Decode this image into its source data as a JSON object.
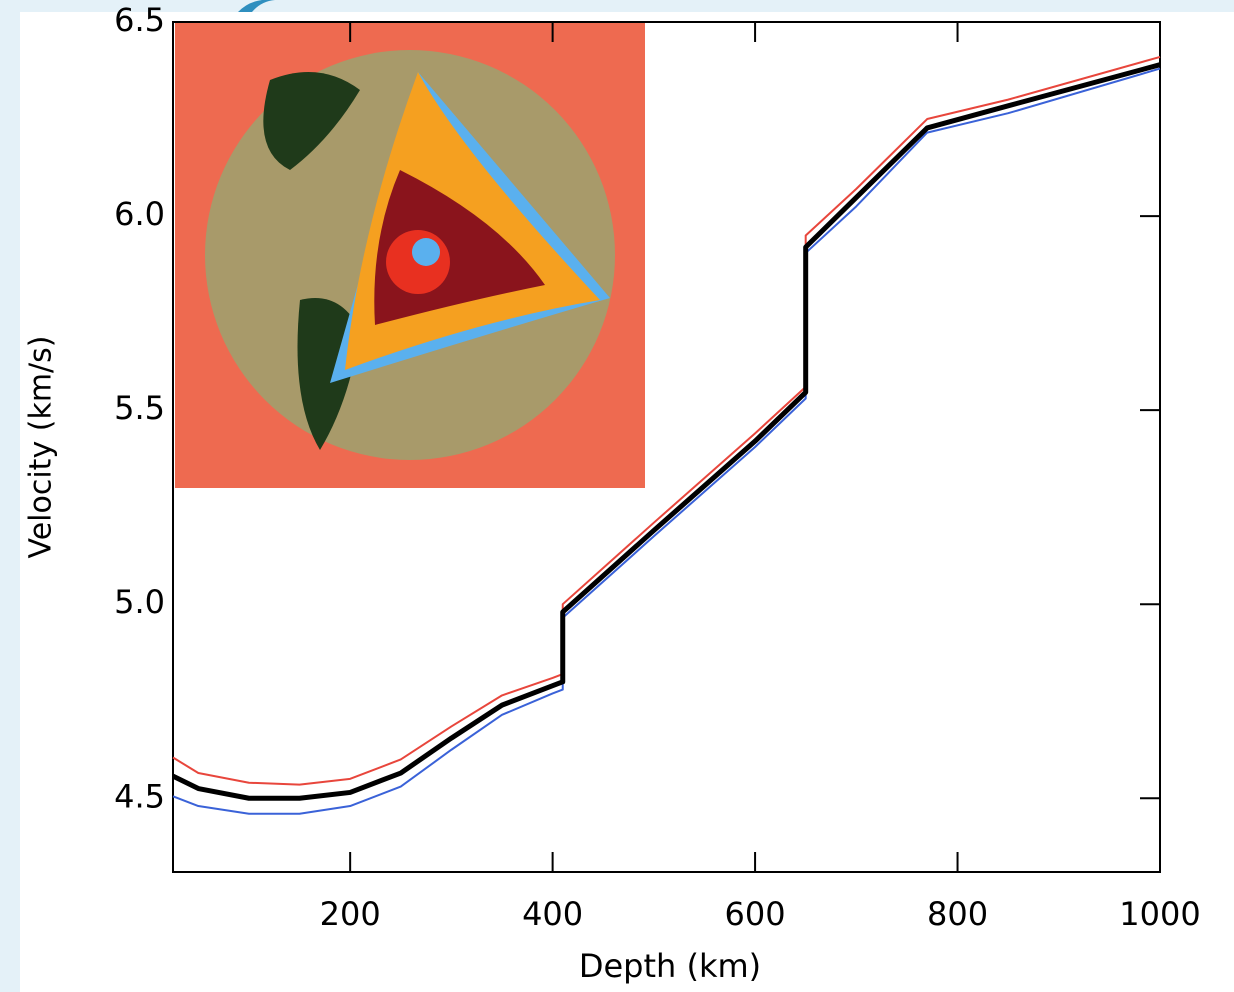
{
  "chart_data": {
    "type": "line",
    "xlabel": "Depth (km)",
    "ylabel": "Velocity (km/s)",
    "x": [
      25,
      50,
      100,
      150,
      200,
      250,
      300,
      350,
      400,
      410,
      410,
      500,
      600,
      650,
      650,
      700,
      770,
      850,
      1000
    ],
    "series": [
      {
        "color": "#e8463c",
        "values": [
          4.605,
          4.565,
          4.54,
          4.535,
          4.55,
          4.6,
          4.685,
          4.765,
          4.81,
          4.82,
          5.0,
          5.21,
          5.44,
          5.56,
          5.95,
          6.07,
          6.25,
          6.3,
          6.41
        ]
      },
      {
        "color": "#3a62d8",
        "values": [
          4.505,
          4.48,
          4.46,
          4.46,
          4.48,
          4.53,
          4.625,
          4.715,
          4.77,
          4.78,
          4.965,
          5.175,
          5.405,
          5.53,
          5.905,
          6.025,
          6.215,
          6.265,
          6.38
        ]
      },
      {
        "color": "#000000",
        "values": [
          4.557,
          4.525,
          4.5,
          4.5,
          4.515,
          4.565,
          4.655,
          4.74,
          4.79,
          4.8,
          4.98,
          5.19,
          5.42,
          5.546,
          5.92,
          6.048,
          6.227,
          6.284,
          6.39
        ]
      }
    ],
    "xlim": [
      25,
      1000
    ],
    "xticks": [
      200,
      400,
      600,
      800,
      1000
    ],
    "ylim": [
      4.31,
      6.5
    ],
    "yticks": [
      4.5,
      {
        "value": 5.0,
        "label": "5.0"
      },
      5.5,
      {
        "value": 6.0,
        "label": "6.0"
      },
      6.5
    ]
  }
}
